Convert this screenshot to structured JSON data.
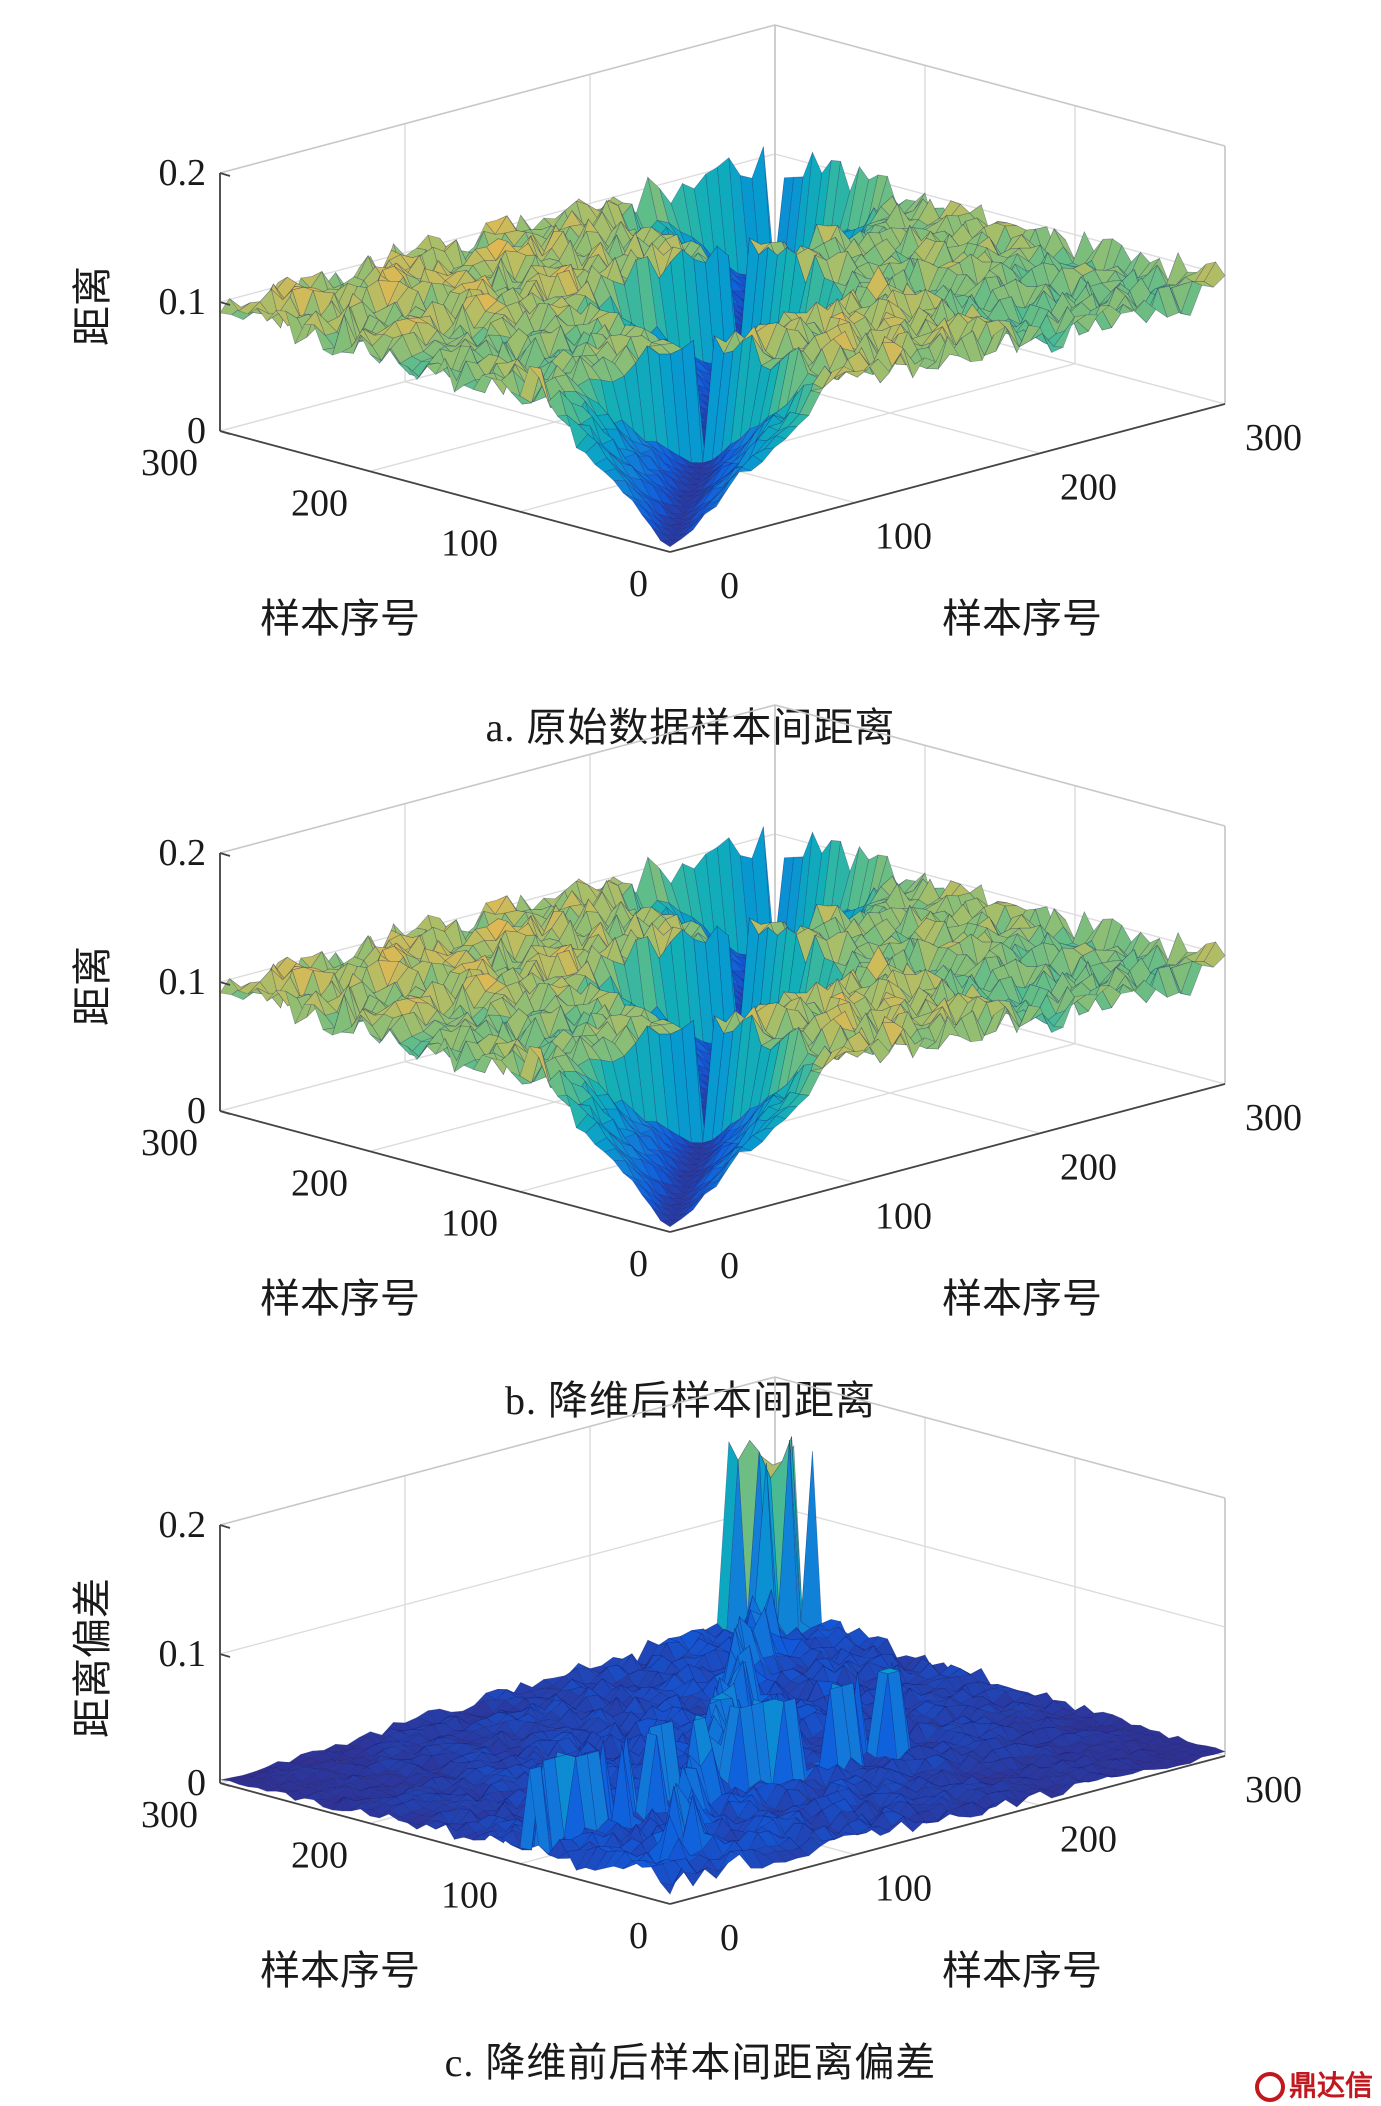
{
  "chart_data": [
    {
      "type": "surface",
      "panel_id": "a",
      "caption": "a.  原始数据样本间距离",
      "zlabel": "距离",
      "xlabel": "样本序号",
      "ylabel": "样本序号",
      "zticks": [
        "0.2",
        "0.1",
        "0"
      ],
      "xticks": [
        "300",
        "200",
        "100",
        "0"
      ],
      "yticks": [
        "0",
        "100",
        "200",
        "300"
      ],
      "zlim": [
        0,
        0.2
      ],
      "xlim": [
        0,
        300
      ],
      "ylim": [
        0,
        300
      ],
      "grid": true,
      "surface": {
        "n": 300,
        "max_distance": 0.11,
        "diagonal_distance": 0,
        "colormap": "parula",
        "deviation_peak": null
      }
    },
    {
      "type": "surface",
      "panel_id": "b",
      "caption": "b.  降维后样本间距离",
      "zlabel": "距离",
      "xlabel": "样本序号",
      "ylabel": "样本序号",
      "zticks": [
        "0.2",
        "0.1",
        "0"
      ],
      "xticks": [
        "300",
        "200",
        "100",
        "0"
      ],
      "yticks": [
        "0",
        "100",
        "200",
        "300"
      ],
      "zlim": [
        0,
        0.2
      ],
      "xlim": [
        0,
        300
      ],
      "ylim": [
        0,
        300
      ],
      "grid": true,
      "surface": {
        "n": 300,
        "max_distance": 0.11,
        "diagonal_distance": 0,
        "colormap": "parula",
        "deviation_peak": null
      }
    },
    {
      "type": "surface",
      "panel_id": "c",
      "caption": "c.  降维前后样本间距离偏差",
      "zlabel": "距离偏差",
      "xlabel": "样本序号",
      "ylabel": "样本序号",
      "zticks": [
        "0.2",
        "0.1",
        "0"
      ],
      "xticks": [
        "300",
        "200",
        "100",
        "0"
      ],
      "yticks": [
        "0",
        "100",
        "200",
        "300"
      ],
      "zlim": [
        0,
        0.2
      ],
      "xlim": [
        0,
        300
      ],
      "ylim": [
        0,
        300
      ],
      "grid": true,
      "surface": {
        "n": 300,
        "max_distance": 0.03,
        "diagonal_distance": 0,
        "colormap": "parula",
        "deviation_peak": 0.18
      }
    }
  ],
  "watermark": {
    "text": "鼎达信"
  }
}
